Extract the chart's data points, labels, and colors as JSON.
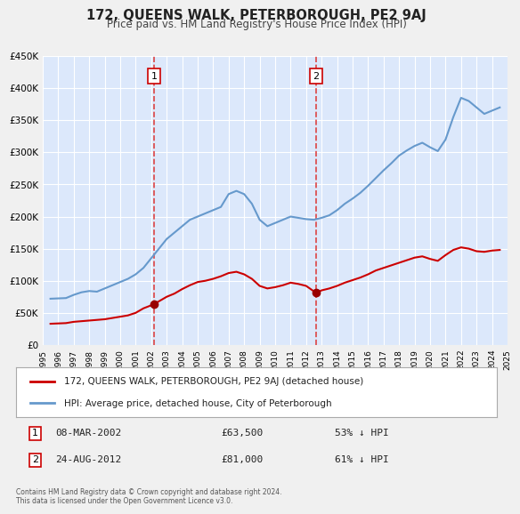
{
  "title": "172, QUEENS WALK, PETERBOROUGH, PE2 9AJ",
  "subtitle": "Price paid vs. HM Land Registry's House Price Index (HPI)",
  "bg_color": "#e8f0fe",
  "plot_bg_color": "#dce8fb",
  "grid_color": "#ffffff",
  "red_line_color": "#cc0000",
  "blue_line_color": "#6699cc",
  "marker_color": "#990000",
  "vline_color": "#dd4444",
  "sale1_x": 2002.19,
  "sale1_y": 63500,
  "sale1_label": "1",
  "sale1_date": "08-MAR-2002",
  "sale1_price": "£63,500",
  "sale1_hpi": "53% ↓ HPI",
  "sale2_x": 2012.65,
  "sale2_y": 81000,
  "sale2_label": "2",
  "sale2_date": "24-AUG-2012",
  "sale2_price": "£81,000",
  "sale2_hpi": "61% ↓ HPI",
  "ylim": [
    0,
    450000
  ],
  "yticks": [
    0,
    50000,
    100000,
    150000,
    200000,
    250000,
    300000,
    350000,
    400000,
    450000
  ],
  "xlim": [
    1995,
    2025
  ],
  "xticks": [
    1995,
    1996,
    1997,
    1998,
    1999,
    2000,
    2001,
    2002,
    2003,
    2004,
    2005,
    2006,
    2007,
    2008,
    2009,
    2010,
    2011,
    2012,
    2013,
    2014,
    2015,
    2016,
    2017,
    2018,
    2019,
    2020,
    2021,
    2022,
    2023,
    2024,
    2025
  ],
  "legend_red": "172, QUEENS WALK, PETERBOROUGH, PE2 9AJ (detached house)",
  "legend_blue": "HPI: Average price, detached house, City of Peterborough",
  "footer": "Contains HM Land Registry data © Crown copyright and database right 2024.\nThis data is licensed under the Open Government Licence v3.0.",
  "hpi_years": [
    1995.5,
    1996,
    1996.5,
    1997,
    1997.5,
    1998,
    1998.5,
    1999,
    1999.5,
    2000,
    2000.5,
    2001,
    2001.5,
    2002,
    2002.5,
    2003,
    2003.5,
    2004,
    2004.5,
    2005,
    2005.5,
    2006,
    2006.5,
    2007,
    2007.5,
    2008,
    2008.5,
    2009,
    2009.5,
    2010,
    2010.5,
    2011,
    2011.5,
    2012,
    2012.5,
    2013,
    2013.5,
    2014,
    2014.5,
    2015,
    2015.5,
    2016,
    2016.5,
    2017,
    2017.5,
    2018,
    2018.5,
    2019,
    2019.5,
    2020,
    2020.5,
    2021,
    2021.5,
    2022,
    2022.5,
    2023,
    2023.5,
    2024,
    2024.5
  ],
  "hpi_values": [
    72000,
    72500,
    73000,
    78000,
    82000,
    84000,
    83000,
    88000,
    93000,
    98000,
    103000,
    110000,
    120000,
    135000,
    150000,
    165000,
    175000,
    185000,
    195000,
    200000,
    205000,
    210000,
    215000,
    235000,
    240000,
    235000,
    220000,
    195000,
    185000,
    190000,
    195000,
    200000,
    198000,
    196000,
    195000,
    198000,
    202000,
    210000,
    220000,
    228000,
    237000,
    248000,
    260000,
    272000,
    283000,
    295000,
    303000,
    310000,
    315000,
    308000,
    302000,
    320000,
    355000,
    385000,
    380000,
    370000,
    360000,
    365000,
    370000
  ],
  "red_years": [
    1995.5,
    1996,
    1996.5,
    1997,
    1997.5,
    1998,
    1998.5,
    1999,
    1999.5,
    2000,
    2000.5,
    2001,
    2001.5,
    2002.19,
    2002.5,
    2003,
    2003.5,
    2004,
    2004.5,
    2005,
    2005.5,
    2006,
    2006.5,
    2007,
    2007.5,
    2008,
    2008.5,
    2009,
    2009.5,
    2010,
    2010.5,
    2011,
    2011.5,
    2012,
    2012.65,
    2013,
    2013.5,
    2014,
    2014.5,
    2015,
    2015.5,
    2016,
    2016.5,
    2017,
    2017.5,
    2018,
    2018.5,
    2019,
    2019.5,
    2020,
    2020.5,
    2021,
    2021.5,
    2022,
    2022.5,
    2023,
    2023.5,
    2024,
    2024.5
  ],
  "red_values": [
    33000,
    33500,
    34000,
    36000,
    37000,
    38000,
    39000,
    40000,
    42000,
    44000,
    46000,
    50000,
    57000,
    63500,
    68000,
    75000,
    80000,
    87000,
    93000,
    98000,
    100000,
    103000,
    107000,
    112000,
    114000,
    110000,
    103000,
    92000,
    88000,
    90000,
    93000,
    97000,
    95000,
    92000,
    81000,
    85000,
    88000,
    92000,
    97000,
    101000,
    105000,
    110000,
    116000,
    120000,
    124000,
    128000,
    132000,
    136000,
    138000,
    134000,
    131000,
    140000,
    148000,
    152000,
    150000,
    146000,
    145000,
    147000,
    148000
  ]
}
